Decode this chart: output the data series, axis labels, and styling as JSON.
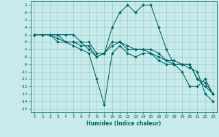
{
  "title": "",
  "xlabel": "Humidex (Indice chaleur)",
  "ylabel": "",
  "bg_color": "#c8eaea",
  "line_color": "#006666",
  "grid_color": "#99cccc",
  "xlim": [
    -0.5,
    23.5
  ],
  "ylim": [
    -15.5,
    -0.5
  ],
  "xticks": [
    0,
    1,
    2,
    3,
    4,
    5,
    6,
    7,
    8,
    9,
    10,
    11,
    12,
    13,
    14,
    15,
    16,
    17,
    18,
    19,
    20,
    21,
    22,
    23
  ],
  "yticks": [
    -1,
    -2,
    -3,
    -4,
    -5,
    -6,
    -7,
    -8,
    -9,
    -10,
    -11,
    -12,
    -13,
    -14,
    -15
  ],
  "series1_x": [
    0,
    1,
    2,
    3,
    4,
    5,
    6,
    7,
    8,
    9,
    10,
    11,
    12,
    13,
    14,
    15,
    16,
    17,
    18,
    19,
    20,
    21,
    22,
    23
  ],
  "series1_y": [
    -5,
    -5,
    -5,
    -5,
    -5,
    -5,
    -6,
    -6,
    -7.5,
    -7.5,
    -4,
    -2,
    -1,
    -2,
    -1,
    -1,
    -4,
    -7,
    -9,
    -9,
    -9,
    -11,
    -12,
    -13
  ],
  "series2_x": [
    0,
    1,
    2,
    3,
    4,
    5,
    6,
    7,
    8,
    9,
    10,
    11,
    12,
    13,
    14,
    15,
    16,
    17,
    18,
    19,
    20,
    21,
    22,
    23
  ],
  "series2_y": [
    -5,
    -5,
    -5,
    -5,
    -6,
    -6,
    -6,
    -7,
    -8,
    -7.5,
    -6,
    -6,
    -7,
    -7,
    -7,
    -7.5,
    -8,
    -8.5,
    -8.5,
    -9,
    -9.5,
    -10,
    -13,
    -14
  ],
  "series3_x": [
    0,
    2,
    3,
    4,
    5,
    6,
    7,
    8,
    9,
    10,
    11,
    12,
    13,
    14,
    15,
    16,
    17,
    18,
    19,
    20,
    21,
    22,
    23
  ],
  "series3_y": [
    -5,
    -5,
    -6,
    -6,
    -6.5,
    -7,
    -7.5,
    -11,
    -14.5,
    -7.5,
    -6.5,
    -7.5,
    -8,
    -7.5,
    -7.5,
    -8.5,
    -9,
    -9,
    -10,
    -12,
    -12,
    -11,
    -13
  ],
  "series4_x": [
    0,
    1,
    2,
    3,
    4,
    5,
    6,
    7,
    8,
    9,
    10,
    11,
    12,
    13,
    14,
    15,
    16,
    17,
    18,
    19,
    20,
    21,
    22,
    23
  ],
  "series4_y": [
    -5,
    -5,
    -5,
    -5.5,
    -6,
    -6,
    -6.5,
    -6.5,
    -8,
    -7.5,
    -6.5,
    -6,
    -6.5,
    -7,
    -7,
    -7,
    -7.5,
    -8.5,
    -9,
    -9,
    -9,
    -11,
    -11.5,
    -13
  ]
}
